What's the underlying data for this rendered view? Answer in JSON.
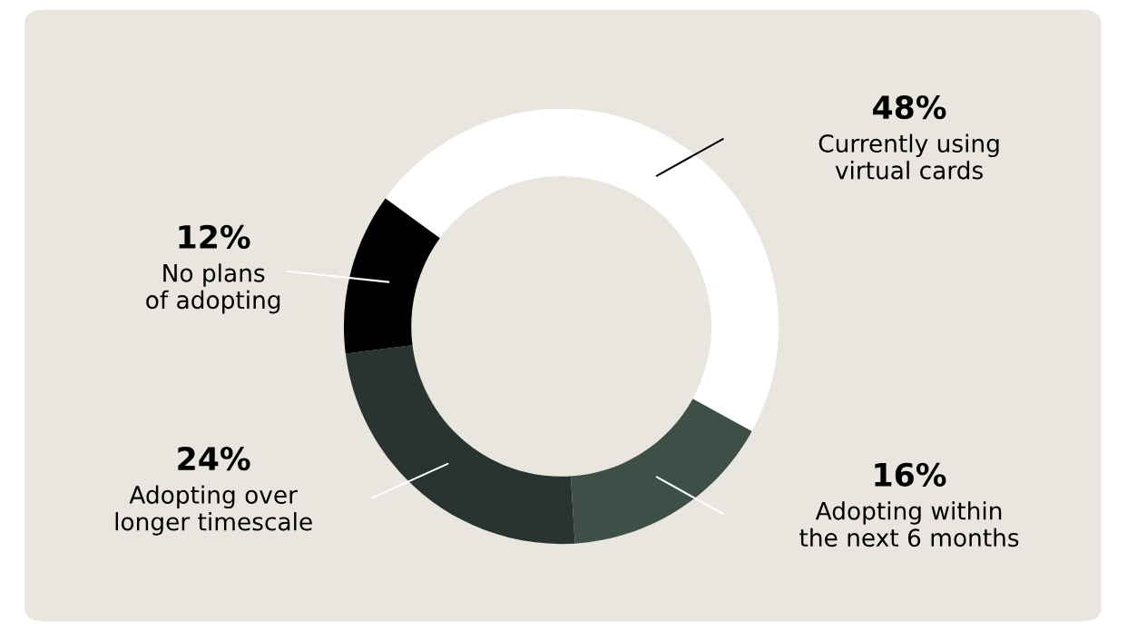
{
  "chart_data": {
    "type": "donut",
    "categories": [
      "Currently using\nvirtual cards",
      "Adopting within\nthe next 6 months",
      "Adopting over\nlonger timescale",
      "No plans\nof adopting"
    ],
    "values": [
      48,
      16,
      24,
      12
    ],
    "value_labels": [
      "48%",
      "16%",
      "24%",
      "12%"
    ],
    "colors": [
      "#ffffff",
      "#3d4f47",
      "#29332f",
      "#000000"
    ]
  }
}
